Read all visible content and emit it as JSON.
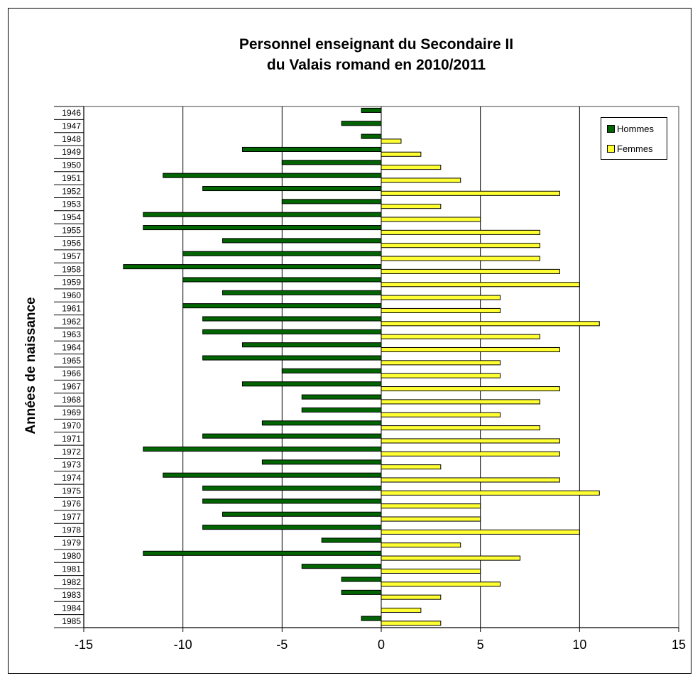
{
  "chart_data": {
    "type": "bar",
    "orientation": "horizontal",
    "title": [
      "Personnel enseignant du Secondaire II",
      "du Valais romand en 2010/2011"
    ],
    "ylabel": "Années de naissance",
    "xlabel": "",
    "xlim": [
      -15,
      15
    ],
    "xticks": [
      -15,
      -10,
      -5,
      0,
      5,
      10,
      15
    ],
    "grid": "vertical major gridlines",
    "legend_position": "top-right",
    "categories": [
      "1946",
      "1947",
      "1948",
      "1949",
      "1950",
      "1951",
      "1952",
      "1953",
      "1954",
      "1955",
      "1956",
      "1957",
      "1958",
      "1959",
      "1960",
      "1961",
      "1962",
      "1963",
      "1964",
      "1965",
      "1966",
      "1967",
      "1968",
      "1969",
      "1970",
      "1971",
      "1972",
      "1973",
      "1974",
      "1975",
      "1976",
      "1977",
      "1978",
      "1979",
      "1980",
      "1981",
      "1982",
      "1983",
      "1984",
      "1985"
    ],
    "series": [
      {
        "name": "Hommes",
        "color": "#006400",
        "values": [
          -1,
          -2,
          -1,
          -7,
          -5,
          -11,
          -9,
          -5,
          -12,
          -12,
          -8,
          -10,
          -13,
          -10,
          -8,
          -10,
          -9,
          -9,
          -7,
          -9,
          -5,
          -7,
          -4,
          -4,
          -6,
          -9,
          -12,
          -6,
          -11,
          -9,
          -9,
          -8,
          -9,
          -3,
          -12,
          -4,
          -2,
          -2,
          0,
          -1
        ]
      },
      {
        "name": "Femmes",
        "color": "#FFFF33",
        "values": [
          0,
          0,
          1,
          2,
          3,
          4,
          9,
          3,
          5,
          8,
          8,
          8,
          9,
          10,
          6,
          6,
          11,
          8,
          9,
          6,
          6,
          9,
          8,
          6,
          8,
          9,
          9,
          3,
          9,
          11,
          5,
          5,
          10,
          4,
          7,
          5,
          6,
          3,
          2,
          3
        ]
      }
    ]
  }
}
